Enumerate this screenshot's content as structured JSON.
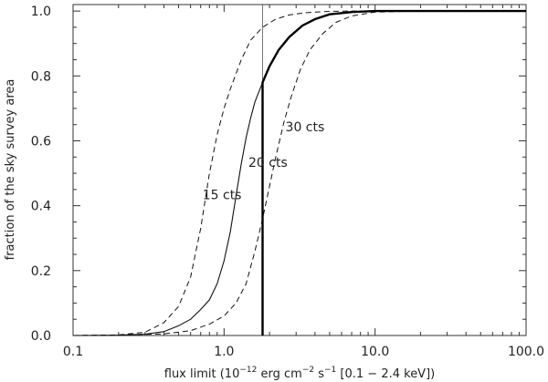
{
  "chart_data": {
    "type": "line",
    "xscale": "log",
    "xlim": [
      0.1,
      100.0
    ],
    "ylim": [
      0.0,
      1.02
    ],
    "grid": false,
    "xlabel": "flux limit   (10",
    "xlabel_exp": "−12",
    "xlabel_mid": " erg cm",
    "xlabel_exp2": "−2",
    "xlabel_mid2": " s",
    "xlabel_exp3": "−1",
    "xlabel_tail": " [0.1 − 2.4 keV])",
    "ylabel": "fraction of the sky survey area",
    "x_ticks": [
      "0.1",
      "1.0",
      "10.0",
      "100.0"
    ],
    "y_ticks": [
      "0.0",
      "0.2",
      "0.4",
      "0.6",
      "0.8",
      "1.0"
    ],
    "reference_line_x": 1.8,
    "series": [
      {
        "name": "15 cts",
        "style": "dashed",
        "x": [
          0.1,
          0.2,
          0.3,
          0.4,
          0.5,
          0.6,
          0.7,
          0.8,
          0.9,
          1.0,
          1.1,
          1.3,
          1.5,
          1.8,
          2.2,
          2.7,
          3.3,
          4.0,
          5.0,
          7.0,
          10.0,
          20.0,
          50.0,
          100.0
        ],
        "y": [
          0.0,
          0.002,
          0.01,
          0.04,
          0.09,
          0.18,
          0.33,
          0.5,
          0.62,
          0.7,
          0.76,
          0.85,
          0.91,
          0.95,
          0.975,
          0.988,
          0.994,
          0.997,
          0.999,
          1.0,
          1.0,
          1.0,
          1.0,
          1.0
        ]
      },
      {
        "name": "20 cts",
        "style": "solid",
        "x": [
          0.1,
          0.2,
          0.3,
          0.4,
          0.5,
          0.6,
          0.7,
          0.8,
          0.9,
          1.0,
          1.1,
          1.2,
          1.3,
          1.4,
          1.5,
          1.6,
          1.8,
          2.0,
          2.3,
          2.7,
          3.3,
          4.0,
          5.0,
          7.0,
          10.0,
          20.0,
          50.0,
          100.0
        ],
        "y": [
          0.0,
          0.001,
          0.004,
          0.012,
          0.03,
          0.05,
          0.08,
          0.11,
          0.16,
          0.23,
          0.32,
          0.43,
          0.53,
          0.61,
          0.67,
          0.72,
          0.78,
          0.83,
          0.88,
          0.92,
          0.955,
          0.975,
          0.99,
          0.997,
          1.0,
          1.0,
          1.0,
          1.0
        ]
      },
      {
        "name": "30 cts",
        "style": "dashed",
        "x": [
          0.1,
          0.2,
          0.4,
          0.6,
          0.8,
          1.0,
          1.2,
          1.4,
          1.6,
          1.8,
          2.0,
          2.2,
          2.5,
          2.8,
          3.2,
          3.7,
          4.5,
          5.5,
          7.0,
          10.0,
          20.0,
          50.0,
          100.0
        ],
        "y": [
          0.0,
          0.001,
          0.005,
          0.015,
          0.035,
          0.06,
          0.1,
          0.16,
          0.26,
          0.36,
          0.46,
          0.55,
          0.66,
          0.74,
          0.82,
          0.88,
          0.93,
          0.965,
          0.985,
          0.997,
          1.0,
          1.0,
          1.0
        ]
      }
    ],
    "annotations": [
      {
        "text": "15 cts",
        "x": 0.72,
        "y": 0.42
      },
      {
        "text": "20 cts",
        "x": 1.45,
        "y": 0.52
      },
      {
        "text": "30 cts",
        "x": 2.55,
        "y": 0.63
      }
    ]
  }
}
